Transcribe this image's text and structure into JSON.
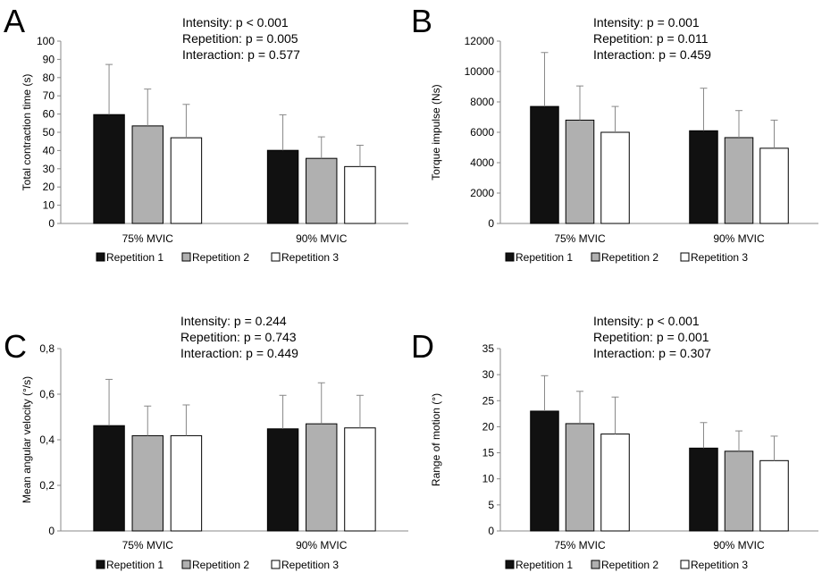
{
  "colors": {
    "repetition_1": "#111111",
    "repetition_2": "#b0b0b0",
    "repetition_3": "#ffffff",
    "axis": "#888888",
    "error_bar": "#888888",
    "bar_edge": "#000000"
  },
  "chart_data": [
    {
      "type": "bar",
      "panel": "A",
      "ylabel": "Total contraction time (s)",
      "ylim": [
        0,
        100
      ],
      "yticks": [
        "0",
        "10",
        "20",
        "30",
        "40",
        "50",
        "60",
        "70",
        "80",
        "90",
        "100"
      ],
      "ytick_values": [
        0,
        10,
        20,
        30,
        40,
        50,
        60,
        70,
        80,
        90,
        100
      ],
      "categories": [
        "75% MVIC",
        "90% MVIC"
      ],
      "stats": [
        "Intensity: p < 0.001",
        "Repetition: p = 0.005",
        "Interaction: p = 0.577"
      ],
      "series": [
        {
          "name": "Repetition 1",
          "values": [
            59.7,
            40.1
          ],
          "errors": [
            27.5,
            19.5
          ]
        },
        {
          "name": "Repetition 2",
          "values": [
            53.5,
            35.7
          ],
          "errors": [
            20.2,
            11.8
          ]
        },
        {
          "name": "Repetition 3",
          "values": [
            47.0,
            31.2
          ],
          "errors": [
            18.3,
            11.7
          ]
        }
      ],
      "legend": [
        "Repetition 1",
        "Repetition 2",
        "Repetition 3"
      ]
    },
    {
      "type": "bar",
      "panel": "B",
      "ylabel": "Torque impulse (Ns)",
      "ylim": [
        0,
        12000
      ],
      "yticks": [
        "0",
        "2000",
        "4000",
        "6000",
        "8000",
        "10000",
        "12000"
      ],
      "ytick_values": [
        0,
        2000,
        4000,
        6000,
        8000,
        10000,
        12000
      ],
      "categories": [
        "75% MVIC",
        "90% MVIC"
      ],
      "stats": [
        "Intensity: p = 0.001",
        "Repetition: p = 0.011",
        "Interaction: p = 0.459"
      ],
      "series": [
        {
          "name": "Repetition 1",
          "values": [
            7700,
            6100
          ],
          "errors": [
            3550,
            2800
          ]
        },
        {
          "name": "Repetition 2",
          "values": [
            6800,
            5650
          ],
          "errors": [
            2250,
            1780
          ]
        },
        {
          "name": "Repetition 3",
          "values": [
            6000,
            4950
          ],
          "errors": [
            1700,
            1850
          ]
        }
      ],
      "legend": [
        "Repetition 1",
        "Repetition 2",
        "Repetition 3"
      ]
    },
    {
      "type": "bar",
      "panel": "C",
      "ylabel": "Mean angular velocity (°/s)",
      "ylim": [
        0,
        0.8
      ],
      "yticks": [
        "0",
        "0,2",
        "0,4",
        "0,6",
        "0,8"
      ],
      "ytick_values": [
        0,
        0.2,
        0.4,
        0.6,
        0.8
      ],
      "categories": [
        "75% MVIC",
        "90% MVIC"
      ],
      "stats": [
        "Intensity: p = 0.244",
        "Repetition: p = 0.743",
        "Interaction: p = 0.449"
      ],
      "series": [
        {
          "name": "Repetition 1",
          "values": [
            0.462,
            0.448
          ],
          "errors": [
            0.203,
            0.147
          ]
        },
        {
          "name": "Repetition 2",
          "values": [
            0.418,
            0.47
          ],
          "errors": [
            0.13,
            0.18
          ]
        },
        {
          "name": "Repetition 3",
          "values": [
            0.418,
            0.452
          ],
          "errors": [
            0.135,
            0.143
          ]
        }
      ],
      "legend": [
        "Repetition 1",
        "Repetition 2",
        "Repetition 3"
      ]
    },
    {
      "type": "bar",
      "panel": "D",
      "ylabel": "Range of motion (°)",
      "ylim": [
        0,
        35
      ],
      "yticks": [
        "0",
        "5",
        "10",
        "15",
        "20",
        "25",
        "30",
        "35"
      ],
      "ytick_values": [
        0,
        5,
        10,
        15,
        20,
        25,
        30,
        35
      ],
      "categories": [
        "75% MVIC",
        "90% MVIC"
      ],
      "stats": [
        "Intensity: p < 0.001",
        "Repetition: p = 0.001",
        "Interaction: p = 0.307"
      ],
      "series": [
        {
          "name": "Repetition 1",
          "values": [
            23.0,
            15.9
          ],
          "errors": [
            6.8,
            4.9
          ]
        },
        {
          "name": "Repetition 2",
          "values": [
            20.6,
            15.3
          ],
          "errors": [
            6.2,
            3.9
          ]
        },
        {
          "name": "Repetition 3",
          "values": [
            18.6,
            13.5
          ],
          "errors": [
            7.1,
            4.7
          ]
        }
      ],
      "legend": [
        "Repetition 1",
        "Repetition 2",
        "Repetition 3"
      ]
    }
  ]
}
